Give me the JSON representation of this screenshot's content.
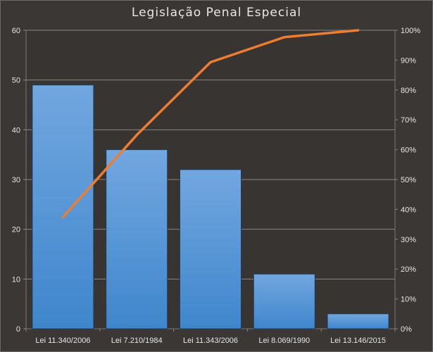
{
  "chart_data": {
    "type": "bar",
    "title": "Legislação Penal Especial",
    "categories": [
      "Lei 11.340/2006",
      "Lei 7.210/1984",
      "Lei 11.343/2006",
      "Lei 8.069/1990",
      "Lei 13.146/2015"
    ],
    "series": [
      {
        "type": "bar",
        "values": [
          49,
          36,
          32,
          11,
          3
        ],
        "color": "#5b9bd5",
        "axis": "left"
      },
      {
        "type": "line",
        "values": [
          37.4,
          64.9,
          89.3,
          97.7,
          100
        ],
        "color": "#ed7d31",
        "axis": "right"
      }
    ],
    "ylim": [
      0,
      60
    ],
    "y_ticks": [
      "0",
      "10",
      "20",
      "30",
      "40",
      "50",
      "60"
    ],
    "y2lim": [
      0,
      100
    ],
    "y2_ticks": [
      "0%",
      "10%",
      "20%",
      "30%",
      "40%",
      "50%",
      "60%",
      "70%",
      "80%",
      "90%",
      "100%"
    ],
    "grid": true,
    "legend": "none"
  }
}
